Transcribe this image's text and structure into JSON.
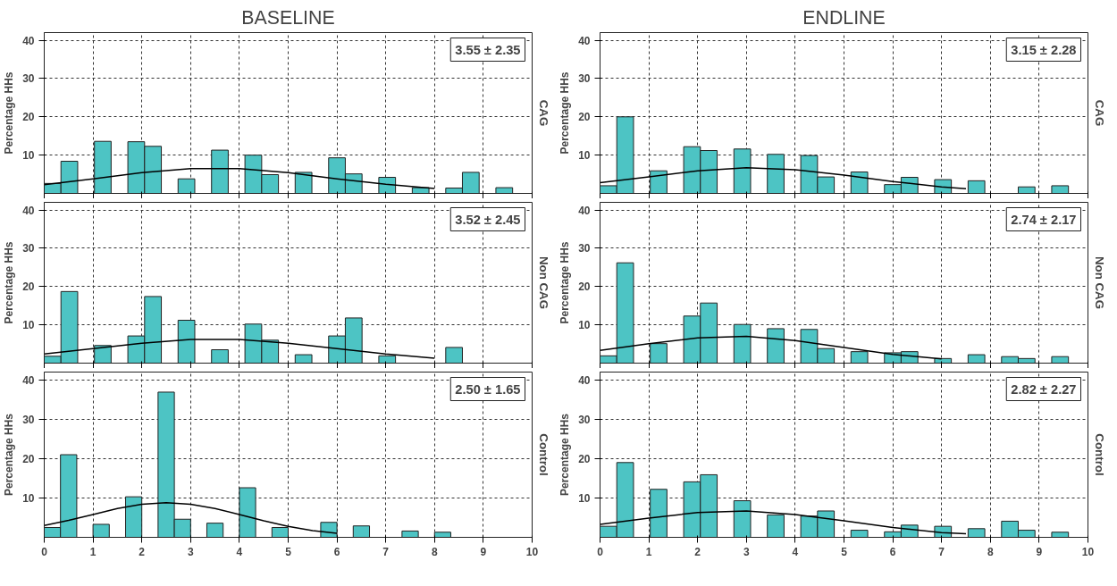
{
  "chart_data": [
    {
      "type": "histogram",
      "title": "BASELINE",
      "ylabel": "Percentage HHs",
      "y2label": "CAG",
      "annotations": [
        "3.55 ± 2.35"
      ],
      "xlim": [
        0,
        10
      ],
      "ylim": [
        0,
        42
      ],
      "xticks": [
        0,
        1,
        2,
        3,
        4,
        5,
        6,
        7,
        8,
        9,
        10
      ],
      "yticks": [
        10,
        20,
        30,
        40
      ],
      "grid": true,
      "tick_labels": "y",
      "series": [
        {
          "color": "#4dc4c4",
          "bins": [
            0,
            0.343,
            0.686,
            1.029,
            1.371,
            1.714,
            2.057,
            2.4,
            2.743,
            3.086,
            3.429,
            3.771,
            4.114,
            4.457,
            4.8,
            5.143,
            5.486,
            5.829,
            6.171,
            6.514,
            6.857,
            7.2,
            7.543,
            7.886,
            8.229,
            8.571,
            8.914,
            9.257,
            9.6
          ],
          "values": [
            2.6,
            8.4,
            null,
            13.6,
            null,
            13.5,
            12.3,
            null,
            3.8,
            null,
            11.3,
            null,
            10,
            4.9,
            null,
            5.5,
            null,
            9.3,
            5.1,
            null,
            4.2,
            null,
            1.5,
            null,
            1.4,
            5.5,
            null,
            1.5
          ]
        },
        {
          "type": "line",
          "color": "#000000",
          "x": [
            0,
            1,
            2,
            3,
            4,
            5,
            6,
            7,
            8
          ],
          "values": [
            2.3,
            3.8,
            5.4,
            6.5,
            6.5,
            5.4,
            3.8,
            2.4,
            1.3
          ]
        }
      ]
    },
    {
      "type": "histogram",
      "title": "ENDLINE",
      "ylabel": "Percentage HHs",
      "y2label": "CAG",
      "annotations": [
        "3.15 ± 2.28"
      ],
      "xlim": [
        0,
        10
      ],
      "ylim": [
        0,
        42
      ],
      "xticks": [
        0,
        1,
        2,
        3,
        4,
        5,
        6,
        7,
        8,
        9,
        10
      ],
      "yticks": [
        10,
        20,
        30,
        40
      ],
      "grid": true,
      "tick_labels": "y",
      "series": [
        {
          "color": "#4dc4c4",
          "bins": [
            0,
            0.343,
            0.686,
            1.029,
            1.371,
            1.714,
            2.057,
            2.4,
            2.743,
            3.086,
            3.429,
            3.771,
            4.114,
            4.457,
            4.8,
            5.143,
            5.486,
            5.829,
            6.171,
            6.514,
            6.857,
            7.2,
            7.543,
            7.886,
            8.229,
            8.571,
            8.914,
            9.257,
            9.6
          ],
          "values": [
            2.0,
            20.0,
            null,
            5.9,
            null,
            12.2,
            11.2,
            null,
            11.6,
            null,
            10.2,
            null,
            9.9,
            4.3,
            null,
            5.6,
            null,
            2.3,
            4.2,
            null,
            3.6,
            null,
            3.3,
            null,
            null,
            1.7,
            null,
            2.0
          ]
        },
        {
          "type": "line",
          "color": "#000000",
          "x": [
            0,
            1,
            2,
            3,
            4,
            5,
            6,
            7,
            7.5
          ],
          "values": [
            2.8,
            4.3,
            5.9,
            6.7,
            6.2,
            4.8,
            3.1,
            1.7,
            1.2
          ]
        }
      ]
    },
    {
      "type": "histogram",
      "ylabel": "Percentage HHs",
      "y2label": "Non CAG",
      "annotations": [
        "3.52 ± 2.45"
      ],
      "xlim": [
        0,
        10
      ],
      "ylim": [
        0,
        42
      ],
      "xticks": [
        0,
        1,
        2,
        3,
        4,
        5,
        6,
        7,
        8,
        9,
        10
      ],
      "yticks": [
        10,
        20,
        30,
        40
      ],
      "grid": true,
      "tick_labels": "y",
      "series": [
        {
          "color": "#4dc4c4",
          "bins": [
            0,
            0.343,
            0.686,
            1.029,
            1.371,
            1.714,
            2.057,
            2.4,
            2.743,
            3.086,
            3.429,
            3.771,
            4.114,
            4.457,
            4.8,
            5.143,
            5.486,
            5.829,
            6.171,
            6.514,
            6.857,
            7.2,
            7.543,
            7.886,
            8.229,
            8.571
          ],
          "values": [
            1.8,
            18.7,
            null,
            4.6,
            null,
            7.1,
            17.4,
            null,
            11.2,
            null,
            3.5,
            null,
            10.2,
            6.0,
            null,
            2.2,
            null,
            7.1,
            11.8,
            null,
            1.9,
            null,
            null,
            null,
            4.1
          ]
        },
        {
          "type": "line",
          "color": "#000000",
          "x": [
            0,
            1,
            2,
            3,
            4,
            5,
            6,
            7,
            8
          ],
          "values": [
            2.4,
            3.8,
            5.2,
            6.2,
            6.2,
            5.2,
            3.8,
            2.4,
            1.3
          ]
        }
      ]
    },
    {
      "type": "histogram",
      "ylabel": "Percentage HHs",
      "y2label": "Non CAG",
      "annotations": [
        "2.74 ± 2.17"
      ],
      "xlim": [
        0,
        10
      ],
      "ylim": [
        0,
        42
      ],
      "xticks": [
        0,
        1,
        2,
        3,
        4,
        5,
        6,
        7,
        8,
        9,
        10
      ],
      "yticks": [
        10,
        20,
        30,
        40
      ],
      "grid": true,
      "tick_labels": "y",
      "series": [
        {
          "color": "#4dc4c4",
          "bins": [
            0,
            0.343,
            0.686,
            1.029,
            1.371,
            1.714,
            2.057,
            2.4,
            2.743,
            3.086,
            3.429,
            3.771,
            4.114,
            4.457,
            4.8,
            5.143,
            5.486,
            5.829,
            6.171,
            6.514,
            6.857,
            7.2,
            7.543,
            7.886,
            8.229,
            8.571,
            8.914,
            9.257,
            9.6
          ],
          "values": [
            1.9,
            26.2,
            null,
            5.1,
            null,
            12.3,
            15.7,
            null,
            10.1,
            null,
            9.0,
            null,
            8.8,
            3.8,
            null,
            3.0,
            null,
            2.7,
            3.0,
            null,
            1.2,
            null,
            2.2,
            null,
            1.7,
            1.2,
            null,
            1.7
          ]
        },
        {
          "type": "line",
          "color": "#000000",
          "x": [
            0,
            1,
            2,
            3,
            4,
            5,
            6,
            7
          ],
          "values": [
            3.3,
            5.1,
            6.6,
            7.0,
            5.9,
            4.1,
            2.3,
            1.1
          ]
        }
      ]
    },
    {
      "type": "histogram",
      "ylabel": "Percentage HHs",
      "y2label": "Control",
      "annotations": [
        "2.50 ± 1.65"
      ],
      "xlim": [
        0,
        10
      ],
      "ylim": [
        0,
        42
      ],
      "xticks": [
        0,
        1,
        2,
        3,
        4,
        5,
        6,
        7,
        8,
        9,
        10
      ],
      "yticks": [
        10,
        20,
        30,
        40
      ],
      "grid": true,
      "series": [
        {
          "color": "#4dc4c4",
          "bins": [
            0,
            0.333,
            0.667,
            1,
            1.333,
            1.667,
            2,
            2.333,
            2.667,
            3,
            3.333,
            3.667,
            4,
            4.333,
            4.667,
            5,
            5.333,
            5.667,
            6,
            6.333,
            6.667,
            7,
            7.333,
            7.667,
            8,
            8.333
          ],
          "values": [
            2.5,
            21.0,
            null,
            3.3,
            null,
            10.3,
            null,
            36.9,
            4.6,
            null,
            3.6,
            null,
            12.6,
            null,
            2.5,
            null,
            null,
            3.8,
            null,
            2.9,
            null,
            null,
            1.6,
            null,
            1.3
          ]
        },
        {
          "type": "line",
          "color": "#000000",
          "x": [
            0,
            0.5,
            1,
            1.5,
            2,
            2.5,
            3,
            3.5,
            4,
            4.5,
            5,
            5.5,
            6
          ],
          "values": [
            3.0,
            4.3,
            5.8,
            7.3,
            8.4,
            8.8,
            8.4,
            7.3,
            5.8,
            4.2,
            2.8,
            1.7,
            1.0
          ]
        }
      ]
    },
    {
      "type": "histogram",
      "ylabel": "Percentage HHs",
      "y2label": "Control",
      "annotations": [
        "2.82 ± 2.27"
      ],
      "xlim": [
        0,
        10
      ],
      "ylim": [
        0,
        42
      ],
      "xticks": [
        0,
        1,
        2,
        3,
        4,
        5,
        6,
        7,
        8,
        9,
        10
      ],
      "yticks": [
        10,
        20,
        30,
        40
      ],
      "grid": true,
      "series": [
        {
          "color": "#4dc4c4",
          "bins": [
            0,
            0.343,
            0.686,
            1.029,
            1.371,
            1.714,
            2.057,
            2.4,
            2.743,
            3.086,
            3.429,
            3.771,
            4.114,
            4.457,
            4.8,
            5.143,
            5.486,
            5.829,
            6.171,
            6.514,
            6.857,
            7.2,
            7.543,
            7.886,
            8.229,
            8.571,
            8.914,
            9.257,
            9.6
          ],
          "values": [
            2.8,
            19.0,
            null,
            12.2,
            null,
            14.1,
            15.9,
            null,
            9.3,
            null,
            5.7,
            null,
            5.4,
            6.7,
            null,
            1.8,
            null,
            1.4,
            3.1,
            null,
            2.8,
            null,
            2.2,
            null,
            4.1,
            1.8,
            null,
            1.3
          ]
        },
        {
          "type": "line",
          "color": "#000000",
          "x": [
            0,
            1,
            2,
            3,
            4,
            5,
            6,
            7,
            7.5
          ],
          "values": [
            3.3,
            4.9,
            6.3,
            6.7,
            5.8,
            4.2,
            2.5,
            1.2,
            0.9
          ]
        }
      ]
    }
  ]
}
